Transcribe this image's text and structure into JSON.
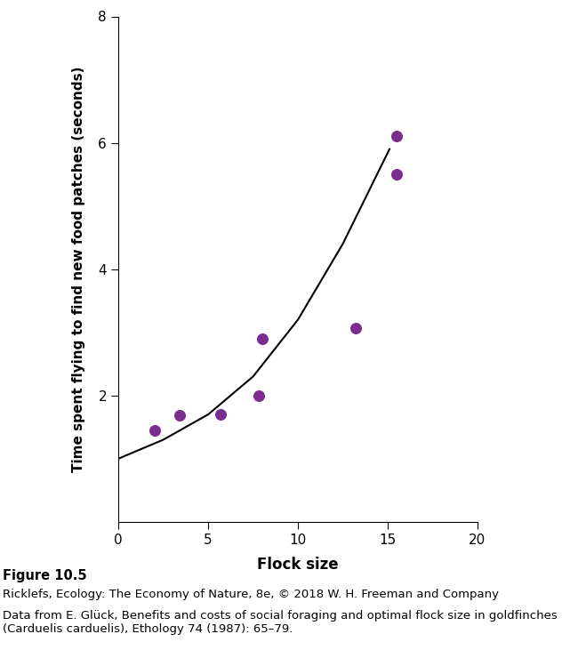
{
  "chart_data": {
    "type": "scatter",
    "x_label": "Flock size",
    "y_label": "Time spent flying to find new food patches (seconds)",
    "caption": "Figure 10.5",
    "source_notes": [
      "Ricklefs, Ecology: The Economy of Nature, 8e, © 2018 W. H. Freeman and Company",
      "Data from E. Glück, Benefits and costs of social foraging and optimal flock size in goldfinches (Carduelis carduelis), Ethology 74 (1987): 65–79."
    ],
    "series": [
      {
        "type": "scatter",
        "color": "#7b2d8e",
        "marker": "o",
        "x": [
          2.0,
          3.4,
          5.7,
          7.8,
          8.0,
          13.2,
          15.5,
          15.5
        ],
        "values": [
          1.45,
          1.68,
          1.7,
          2.0,
          2.9,
          3.07,
          6.1,
          5.5
        ]
      },
      {
        "type": "line",
        "color": "#000000",
        "line_style": "solid",
        "x": [
          0,
          2.5,
          5,
          7.5,
          10,
          12.5,
          15.1
        ],
        "values": [
          1.0,
          1.3,
          1.7,
          2.3,
          3.2,
          4.4,
          5.9
        ]
      }
    ],
    "xlim": [
      0,
      20
    ],
    "xticks": [
      0,
      5,
      10,
      15,
      20
    ],
    "ylim": [
      0,
      8
    ],
    "yticks": [
      2,
      4,
      6,
      8
    ],
    "grid": false
  }
}
